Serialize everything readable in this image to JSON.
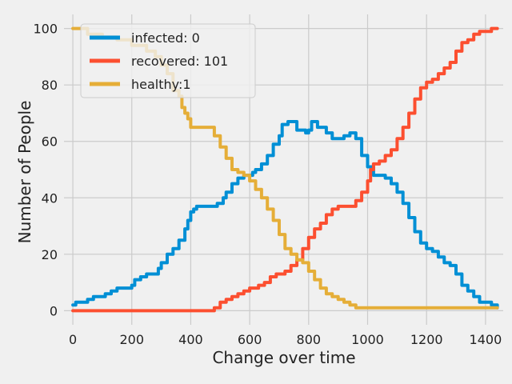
{
  "chart_data": {
    "type": "line",
    "xlabel": "Change over time",
    "ylabel": "Number of People",
    "xlim": [
      -30,
      1460
    ],
    "ylim": [
      -5,
      105
    ],
    "xticks": [
      0,
      200,
      400,
      600,
      800,
      1000,
      1200,
      1400
    ],
    "yticks": [
      0,
      20,
      40,
      60,
      80,
      100
    ],
    "grid": true,
    "legend_position": "top-left",
    "series": [
      {
        "name": "infected: 0",
        "color": "#008fd5",
        "points": [
          [
            0,
            2
          ],
          [
            10,
            3
          ],
          [
            40,
            3
          ],
          [
            50,
            4
          ],
          [
            70,
            5
          ],
          [
            100,
            5
          ],
          [
            110,
            6
          ],
          [
            130,
            7
          ],
          [
            150,
            8
          ],
          [
            190,
            8
          ],
          [
            200,
            9
          ],
          [
            210,
            11
          ],
          [
            230,
            12
          ],
          [
            250,
            13
          ],
          [
            280,
            13
          ],
          [
            290,
            15
          ],
          [
            300,
            17
          ],
          [
            320,
            20
          ],
          [
            340,
            22
          ],
          [
            360,
            25
          ],
          [
            380,
            29
          ],
          [
            390,
            32
          ],
          [
            400,
            35
          ],
          [
            410,
            36
          ],
          [
            420,
            37
          ],
          [
            470,
            37
          ],
          [
            490,
            38
          ],
          [
            510,
            40
          ],
          [
            520,
            42
          ],
          [
            540,
            45
          ],
          [
            560,
            47
          ],
          [
            580,
            48
          ],
          [
            610,
            49
          ],
          [
            620,
            50
          ],
          [
            640,
            52
          ],
          [
            660,
            55
          ],
          [
            680,
            59
          ],
          [
            700,
            62
          ],
          [
            710,
            66
          ],
          [
            730,
            67
          ],
          [
            760,
            64
          ],
          [
            790,
            63
          ],
          [
            800,
            64
          ],
          [
            810,
            67
          ],
          [
            830,
            65
          ],
          [
            860,
            63
          ],
          [
            880,
            61
          ],
          [
            920,
            62
          ],
          [
            940,
            63
          ],
          [
            960,
            61
          ],
          [
            980,
            55
          ],
          [
            1000,
            51
          ],
          [
            1020,
            48
          ],
          [
            1040,
            48
          ],
          [
            1060,
            47
          ],
          [
            1080,
            45
          ],
          [
            1100,
            42
          ],
          [
            1120,
            38
          ],
          [
            1140,
            33
          ],
          [
            1160,
            28
          ],
          [
            1180,
            24
          ],
          [
            1200,
            22
          ],
          [
            1220,
            21
          ],
          [
            1240,
            19
          ],
          [
            1260,
            17
          ],
          [
            1280,
            16
          ],
          [
            1300,
            13
          ],
          [
            1320,
            9
          ],
          [
            1340,
            7
          ],
          [
            1360,
            5
          ],
          [
            1380,
            3
          ],
          [
            1400,
            3
          ],
          [
            1420,
            2
          ],
          [
            1440,
            1
          ]
        ]
      },
      {
        "name": "recovered: 101",
        "color": "#fc4f30",
        "points": [
          [
            0,
            0
          ],
          [
            470,
            0
          ],
          [
            480,
            1
          ],
          [
            500,
            3
          ],
          [
            520,
            4
          ],
          [
            540,
            5
          ],
          [
            560,
            6
          ],
          [
            580,
            7
          ],
          [
            600,
            8
          ],
          [
            630,
            9
          ],
          [
            650,
            10
          ],
          [
            670,
            12
          ],
          [
            690,
            13
          ],
          [
            720,
            14
          ],
          [
            740,
            16
          ],
          [
            760,
            18
          ],
          [
            780,
            22
          ],
          [
            800,
            26
          ],
          [
            820,
            29
          ],
          [
            840,
            31
          ],
          [
            860,
            34
          ],
          [
            880,
            36
          ],
          [
            900,
            37
          ],
          [
            950,
            37
          ],
          [
            960,
            39
          ],
          [
            980,
            42
          ],
          [
            1000,
            46
          ],
          [
            1010,
            50
          ],
          [
            1020,
            52
          ],
          [
            1040,
            53
          ],
          [
            1060,
            55
          ],
          [
            1080,
            57
          ],
          [
            1100,
            61
          ],
          [
            1120,
            65
          ],
          [
            1140,
            70
          ],
          [
            1160,
            75
          ],
          [
            1180,
            79
          ],
          [
            1200,
            81
          ],
          [
            1220,
            82
          ],
          [
            1240,
            84
          ],
          [
            1260,
            86
          ],
          [
            1280,
            88
          ],
          [
            1300,
            92
          ],
          [
            1320,
            95
          ],
          [
            1340,
            96
          ],
          [
            1360,
            98
          ],
          [
            1380,
            99
          ],
          [
            1400,
            99
          ],
          [
            1420,
            100
          ],
          [
            1440,
            100
          ]
        ]
      },
      {
        "name": "healthy:1",
        "color": "#e5ae38",
        "points": [
          [
            0,
            100
          ],
          [
            50,
            98
          ],
          [
            100,
            97
          ],
          [
            150,
            96
          ],
          [
            200,
            94
          ],
          [
            250,
            92
          ],
          [
            280,
            90
          ],
          [
            300,
            87
          ],
          [
            320,
            84
          ],
          [
            340,
            78
          ],
          [
            360,
            76
          ],
          [
            370,
            72
          ],
          [
            380,
            70
          ],
          [
            390,
            68
          ],
          [
            400,
            65
          ],
          [
            460,
            65
          ],
          [
            480,
            62
          ],
          [
            500,
            58
          ],
          [
            520,
            54
          ],
          [
            540,
            50
          ],
          [
            560,
            49
          ],
          [
            580,
            48
          ],
          [
            600,
            46
          ],
          [
            620,
            43
          ],
          [
            640,
            40
          ],
          [
            660,
            36
          ],
          [
            680,
            32
          ],
          [
            700,
            27
          ],
          [
            720,
            22
          ],
          [
            740,
            20
          ],
          [
            760,
            18
          ],
          [
            780,
            17
          ],
          [
            800,
            14
          ],
          [
            820,
            11
          ],
          [
            840,
            8
          ],
          [
            860,
            6
          ],
          [
            880,
            5
          ],
          [
            900,
            4
          ],
          [
            920,
            3
          ],
          [
            940,
            2
          ],
          [
            960,
            1
          ],
          [
            1440,
            1
          ]
        ]
      }
    ]
  }
}
